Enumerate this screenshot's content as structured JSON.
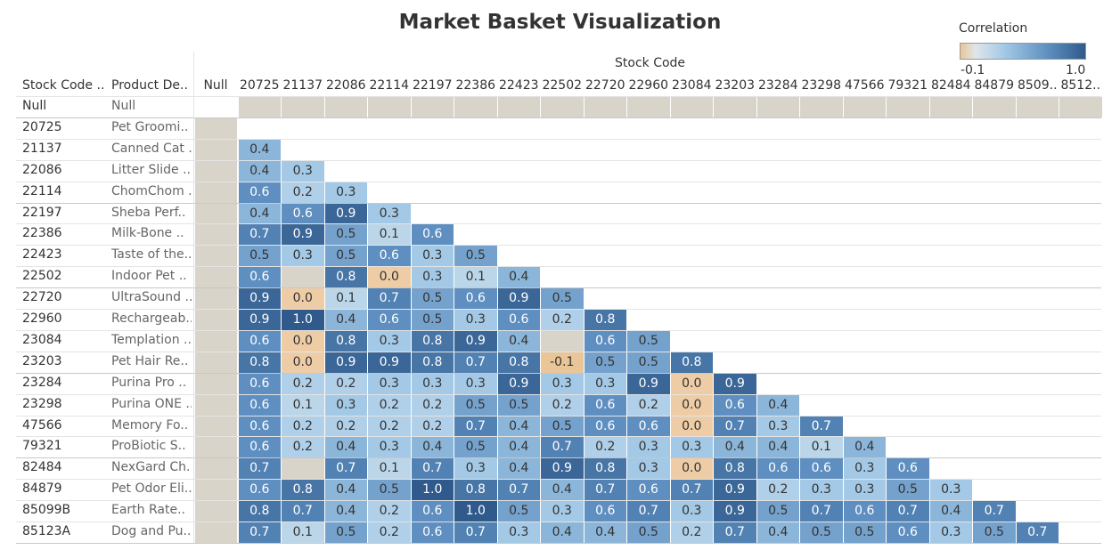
{
  "chart_data": {
    "type": "heatmap",
    "title": "Market Basket Visualization",
    "column_group_label": "Stock Code",
    "row_header_labels": [
      "Stock Code ..",
      "Product De.."
    ],
    "legend": {
      "title": "Correlation",
      "min_label": "-0.1",
      "max_label": "1.0",
      "min": -0.1,
      "max": 1.0,
      "placement": "top-right",
      "colors": {
        "low": "#e9c597",
        "neutral": "#d9d4c9",
        "light": "#a3c9e6",
        "mid": "#5e8fc0",
        "high": "#2f5a8b"
      }
    },
    "columns": [
      "Null",
      "20725",
      "21137",
      "22086",
      "22114",
      "22197",
      "22386",
      "22423",
      "22502",
      "22720",
      "22960",
      "23084",
      "23203",
      "23284",
      "23298",
      "47566",
      "79321",
      "82484",
      "84879",
      "8509..",
      "8512.."
    ],
    "rows": [
      {
        "code": "Null",
        "product": "Null",
        "values": [
          null,
          "x",
          "x",
          "x",
          "x",
          "x",
          "x",
          "x",
          "x",
          "x",
          "x",
          "x",
          "x",
          "x",
          "x",
          "x",
          "x",
          "x",
          "x",
          "x",
          "x"
        ]
      },
      {
        "code": "20725",
        "product": "Pet Groomi..",
        "values": [
          "x"
        ]
      },
      {
        "code": "21137",
        "product": "Canned Cat ..",
        "values": [
          "x",
          0.4
        ]
      },
      {
        "code": "22086",
        "product": "Litter Slide ..",
        "values": [
          "x",
          0.4,
          0.3
        ]
      },
      {
        "code": "22114",
        "product": "ChomChom ..",
        "values": [
          "x",
          0.6,
          0.2,
          0.3
        ]
      },
      {
        "code": "22197",
        "product": "Sheba Perf..",
        "values": [
          "x",
          0.4,
          0.6,
          0.9,
          0.3
        ]
      },
      {
        "code": "22386",
        "product": "Milk-Bone ..",
        "values": [
          "x",
          0.7,
          0.9,
          0.5,
          0.1,
          0.6
        ]
      },
      {
        "code": "22423",
        "product": "Taste of the..",
        "values": [
          "x",
          0.5,
          0.3,
          0.5,
          0.6,
          0.3,
          0.5
        ]
      },
      {
        "code": "22502",
        "product": "Indoor Pet ..",
        "values": [
          "x",
          0.6,
          "x",
          0.8,
          0.0,
          0.3,
          0.1,
          0.4
        ]
      },
      {
        "code": "22720",
        "product": "UltraSound ..",
        "values": [
          "x",
          0.9,
          0.0,
          0.1,
          0.7,
          0.5,
          0.6,
          0.9,
          0.5
        ]
      },
      {
        "code": "22960",
        "product": "Rechargeab..",
        "values": [
          "x",
          0.9,
          1.0,
          0.4,
          0.6,
          0.5,
          0.3,
          0.6,
          0.2,
          0.8
        ]
      },
      {
        "code": "23084",
        "product": "Templation ..",
        "values": [
          "x",
          0.6,
          0.0,
          0.8,
          0.3,
          0.8,
          0.9,
          0.4,
          "x",
          0.6,
          0.5
        ]
      },
      {
        "code": "23203",
        "product": "Pet Hair Re..",
        "values": [
          "x",
          0.8,
          0.0,
          0.9,
          0.9,
          0.8,
          0.7,
          0.8,
          -0.1,
          0.5,
          0.5,
          0.8
        ]
      },
      {
        "code": "23284",
        "product": "Purina Pro ..",
        "values": [
          "x",
          0.6,
          0.2,
          0.2,
          0.3,
          0.3,
          0.3,
          0.9,
          0.3,
          0.3,
          0.9,
          0.0,
          0.9
        ]
      },
      {
        "code": "23298",
        "product": "Purina ONE ..",
        "values": [
          "x",
          0.6,
          0.1,
          0.3,
          0.2,
          0.2,
          0.5,
          0.5,
          0.2,
          0.6,
          0.2,
          0.0,
          0.6,
          0.4
        ]
      },
      {
        "code": "47566",
        "product": "Memory Fo..",
        "values": [
          "x",
          0.6,
          0.2,
          0.2,
          0.2,
          0.2,
          0.7,
          0.4,
          0.5,
          0.6,
          0.6,
          0.0,
          0.7,
          0.3,
          0.7
        ]
      },
      {
        "code": "79321",
        "product": "ProBiotic S..",
        "values": [
          "x",
          0.6,
          0.2,
          0.4,
          0.3,
          0.4,
          0.5,
          0.4,
          0.7,
          0.2,
          0.3,
          0.3,
          0.4,
          0.4,
          0.1,
          0.4
        ]
      },
      {
        "code": "82484",
        "product": "NexGard Ch..",
        "values": [
          "x",
          0.7,
          "x",
          0.7,
          0.1,
          0.7,
          0.3,
          0.4,
          0.9,
          0.8,
          0.3,
          0.0,
          0.8,
          0.6,
          0.6,
          0.3,
          0.6
        ]
      },
      {
        "code": "84879",
        "product": "Pet Odor Eli..",
        "values": [
          "x",
          0.6,
          0.8,
          0.4,
          0.5,
          1.0,
          0.8,
          0.7,
          0.4,
          0.7,
          0.6,
          0.7,
          0.9,
          0.2,
          0.3,
          0.3,
          0.5,
          0.3
        ]
      },
      {
        "code": "85099B",
        "product": "Earth Rate..",
        "values": [
          "x",
          0.8,
          0.7,
          0.4,
          0.2,
          0.6,
          1.0,
          0.5,
          0.3,
          0.6,
          0.7,
          0.3,
          0.9,
          0.5,
          0.7,
          0.6,
          0.7,
          0.4,
          0.7
        ]
      },
      {
        "code": "85123A",
        "product": "Dog and Pu..",
        "values": [
          "x",
          0.7,
          0.1,
          0.5,
          0.2,
          0.6,
          0.7,
          0.3,
          0.4,
          0.4,
          0.5,
          0.2,
          0.7,
          0.4,
          0.5,
          0.5,
          0.6,
          0.3,
          0.5,
          0.7
        ]
      }
    ]
  }
}
